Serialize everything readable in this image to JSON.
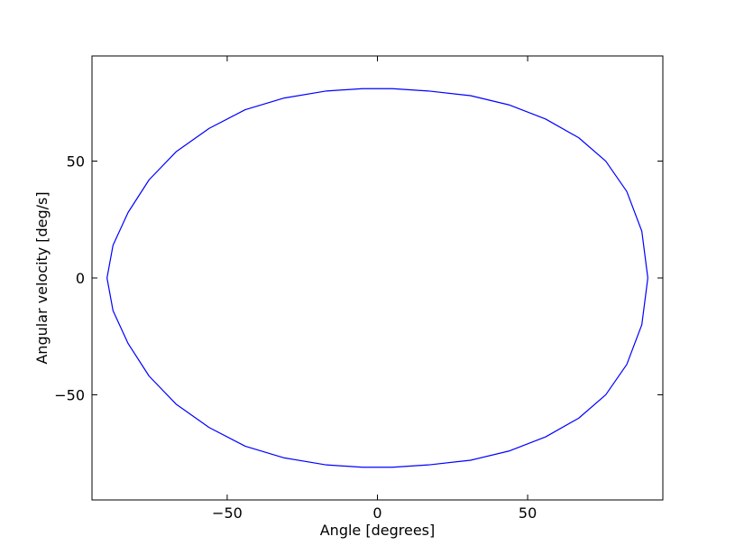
{
  "chart_data": {
    "type": "line",
    "title": "",
    "xlabel": "Angle [degrees]",
    "ylabel": "Angular velocity [deg/s]",
    "xlim": [
      -95,
      95
    ],
    "ylim": [
      -95,
      95
    ],
    "xticks": [
      -50,
      0,
      50
    ],
    "yticks": [
      -50,
      0,
      50
    ],
    "xtick_labels": [
      "−50",
      "0",
      "50"
    ],
    "ytick_labels": [
      "−50",
      "0",
      "50"
    ],
    "grid": false,
    "legend": "none",
    "series": [
      {
        "color": "#0000ff",
        "shape": "closed phase-space orbit",
        "x": [
          90,
          88,
          83,
          76,
          67,
          56,
          44,
          31,
          17,
          5,
          0,
          -5,
          -17,
          -31,
          -44,
          -56,
          -67,
          -76,
          -83,
          -88,
          -90,
          -88,
          -83,
          -76,
          -67,
          -56,
          -44,
          -31,
          -17,
          -5,
          0,
          5,
          17,
          31,
          44,
          56,
          67,
          76,
          83,
          88,
          90
        ],
        "y": [
          0,
          20,
          37,
          50,
          60,
          68,
          74,
          78,
          80,
          81,
          81,
          81,
          80,
          77,
          72,
          64,
          54,
          42,
          28,
          14,
          0,
          -14,
          -28,
          -42,
          -54,
          -64,
          -72,
          -77,
          -80,
          -81,
          -81,
          -81,
          -80,
          -78,
          -74,
          -68,
          -60,
          -50,
          -37,
          -20,
          0
        ]
      }
    ]
  }
}
